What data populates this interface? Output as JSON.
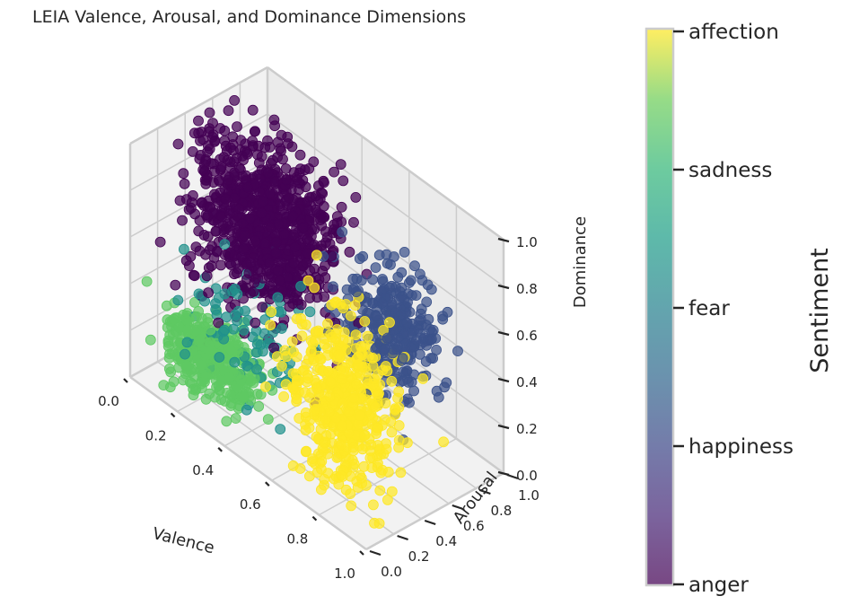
{
  "chart_data": {
    "type": "scatter3d",
    "title": "LEIA Valence, Arousal, and Dominance Dimensions",
    "xlabel": "Valence",
    "ylabel": "Arousal",
    "zlabel": "Dominance",
    "xlim": [
      0,
      1
    ],
    "ylim": [
      0,
      1
    ],
    "zlim": [
      0,
      1
    ],
    "x_ticks": [
      "0.0",
      "0.2",
      "0.4",
      "0.6",
      "0.8",
      "1.0"
    ],
    "y_ticks": [
      "0.0",
      "0.2",
      "0.4",
      "0.6",
      "0.8",
      "1.0"
    ],
    "z_ticks": [
      "0.0",
      "0.2",
      "0.4",
      "0.6",
      "0.8",
      "1.0"
    ],
    "grid": true,
    "colorbar": {
      "label": "Sentiment",
      "ticks": [
        "anger",
        "happiness",
        "fear",
        "sadness",
        "affection"
      ]
    },
    "series": [
      {
        "name": "anger",
        "color": "#440154",
        "center": [
          0.25,
          0.55,
          0.65
        ],
        "spread": [
          0.13,
          0.13,
          0.16
        ],
        "count": 900
      },
      {
        "name": "happiness",
        "color": "#3b528b",
        "center": [
          0.75,
          0.62,
          0.55
        ],
        "spread": [
          0.08,
          0.1,
          0.13
        ],
        "count": 320
      },
      {
        "name": "fear",
        "color": "#21918c",
        "center": [
          0.3,
          0.35,
          0.3
        ],
        "spread": [
          0.12,
          0.12,
          0.12
        ],
        "count": 90
      },
      {
        "name": "sadness",
        "color": "#5ec962",
        "center": [
          0.18,
          0.28,
          0.12
        ],
        "spread": [
          0.09,
          0.08,
          0.07
        ],
        "count": 380
      },
      {
        "name": "affection",
        "color": "#fde725",
        "center": [
          0.72,
          0.32,
          0.3
        ],
        "spread": [
          0.09,
          0.1,
          0.18
        ],
        "count": 520
      }
    ]
  }
}
